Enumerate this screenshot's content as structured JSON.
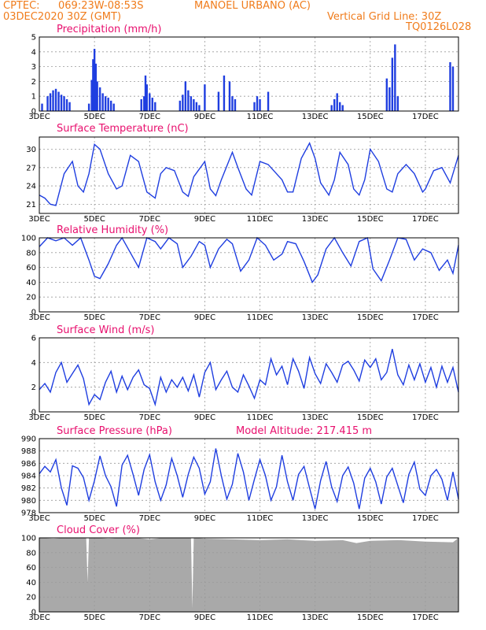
{
  "header": {
    "source": "CPTEC:",
    "coords": "069:23W-08:53S",
    "station": "MANOEL URBANO (AC)",
    "run": "03DEC2020 30Z (GMT)",
    "grid_note": "Vertical Grid Line: 30Z",
    "model": "TQ0126L028"
  },
  "colors": {
    "header": "#f07c1c",
    "title": "#e8106e",
    "series": "#1f3ee0",
    "bars": "#1f3ee0",
    "cloud": "#a9a9a9"
  },
  "x_axis": {
    "tick_labels": [
      "3DEC",
      "5DEC",
      "7DEC",
      "9DEC",
      "11DEC",
      "13DEC",
      "15DEC",
      "17DEC"
    ],
    "tick_days": [
      3,
      5,
      7,
      9,
      11,
      13,
      15,
      17
    ],
    "range_days": [
      3,
      18.2
    ]
  },
  "chart_data": [
    {
      "id": "precip",
      "type": "bar",
      "title": "Precipitation (mm/h)",
      "ylim": [
        0,
        5
      ],
      "yticks": [
        0,
        1,
        2,
        3,
        4,
        5
      ],
      "x": [
        3.1,
        3.3,
        3.4,
        3.5,
        3.6,
        3.7,
        3.8,
        3.9,
        4.0,
        4.1,
        4.8,
        4.9,
        4.95,
        5.0,
        5.05,
        5.1,
        5.2,
        5.3,
        5.4,
        5.5,
        5.6,
        5.7,
        6.7,
        6.8,
        6.85,
        6.9,
        7.0,
        7.1,
        7.2,
        8.1,
        8.2,
        8.3,
        8.4,
        8.5,
        8.6,
        8.7,
        8.8,
        9.0,
        9.5,
        9.7,
        9.9,
        10.0,
        10.1,
        10.8,
        10.9,
        11.0,
        11.3,
        13.6,
        13.7,
        13.8,
        13.9,
        14.0,
        15.6,
        15.7,
        15.8,
        15.9,
        16.0,
        17.9,
        18.0
      ],
      "y": [
        0.5,
        1.0,
        1.2,
        1.4,
        1.5,
        1.3,
        1.1,
        1.0,
        0.8,
        0.6,
        0.5,
        2.1,
        3.5,
        4.2,
        3.2,
        2.0,
        1.6,
        1.2,
        1.0,
        0.9,
        0.7,
        0.5,
        0.8,
        1.0,
        2.4,
        1.8,
        1.2,
        0.9,
        0.6,
        0.7,
        1.1,
        2.0,
        1.4,
        1.0,
        0.8,
        0.6,
        0.4,
        1.8,
        1.3,
        2.4,
        2.0,
        1.0,
        0.8,
        0.6,
        1.0,
        0.8,
        1.3,
        0.4,
        0.8,
        1.2,
        0.6,
        0.4,
        2.2,
        1.6,
        3.6,
        4.5,
        1.0,
        3.3,
        3.0
      ]
    },
    {
      "id": "temp",
      "type": "line",
      "title": "Surface Temperature (nC)",
      "ylim": [
        19.5,
        32
      ],
      "yticks": [
        21,
        24,
        27,
        30
      ],
      "x": [
        3.0,
        3.2,
        3.4,
        3.6,
        3.9,
        4.2,
        4.4,
        4.6,
        4.8,
        5.0,
        5.2,
        5.5,
        5.8,
        6.0,
        6.3,
        6.6,
        6.9,
        7.2,
        7.4,
        7.6,
        7.9,
        8.2,
        8.4,
        8.6,
        9.0,
        9.2,
        9.4,
        9.6,
        10.0,
        10.2,
        10.5,
        10.7,
        11.0,
        11.3,
        11.6,
        11.8,
        12.0,
        12.2,
        12.5,
        12.8,
        13.0,
        13.2,
        13.5,
        13.7,
        13.9,
        14.2,
        14.4,
        14.6,
        14.8,
        15.0,
        15.3,
        15.6,
        15.8,
        16.0,
        16.3,
        16.6,
        16.9,
        17.0,
        17.3,
        17.6,
        17.9,
        18.2
      ],
      "y": [
        22.5,
        22.0,
        21.0,
        20.8,
        26.0,
        28.0,
        24.0,
        23.0,
        26.0,
        30.8,
        30.0,
        26.0,
        23.5,
        24.0,
        29.0,
        28.0,
        23.0,
        22.0,
        26.0,
        27.0,
        26.5,
        23.0,
        22.3,
        25.5,
        28.0,
        23.5,
        22.4,
        25.0,
        29.5,
        27.0,
        23.5,
        22.5,
        28.0,
        27.5,
        26.0,
        25.0,
        23.0,
        23.0,
        28.5,
        31.0,
        28.5,
        24.5,
        22.5,
        25.0,
        29.5,
        27.5,
        23.5,
        22.5,
        25.0,
        30.0,
        28.0,
        23.5,
        23.0,
        26.0,
        27.5,
        26.0,
        23.0,
        23.5,
        26.5,
        27.0,
        24.5,
        29.0
      ]
    },
    {
      "id": "rh",
      "type": "line",
      "title": "Relative Humidity (%)",
      "ylim": [
        0,
        100
      ],
      "yticks": [
        0,
        20,
        40,
        60,
        80,
        100
      ],
      "x": [
        3.0,
        3.3,
        3.6,
        3.9,
        4.2,
        4.5,
        4.8,
        5.0,
        5.2,
        5.5,
        5.8,
        6.0,
        6.3,
        6.6,
        6.9,
        7.2,
        7.4,
        7.7,
        8.0,
        8.2,
        8.5,
        8.8,
        9.0,
        9.2,
        9.5,
        9.8,
        10.0,
        10.3,
        10.6,
        10.9,
        11.2,
        11.5,
        11.8,
        12.0,
        12.3,
        12.6,
        12.9,
        13.1,
        13.4,
        13.7,
        14.0,
        14.3,
        14.6,
        14.9,
        15.1,
        15.4,
        15.7,
        16.0,
        16.3,
        16.6,
        16.9,
        17.2,
        17.5,
        17.8,
        18.0,
        18.2
      ],
      "y": [
        88,
        100,
        96,
        100,
        90,
        100,
        70,
        48,
        45,
        65,
        90,
        100,
        80,
        60,
        100,
        95,
        85,
        100,
        92,
        60,
        75,
        95,
        90,
        60,
        85,
        98,
        92,
        55,
        70,
        100,
        90,
        70,
        78,
        95,
        92,
        68,
        40,
        50,
        85,
        100,
        80,
        62,
        95,
        100,
        58,
        42,
        70,
        100,
        98,
        70,
        85,
        80,
        56,
        70,
        52,
        90
      ]
    },
    {
      "id": "wind",
      "type": "line",
      "title": "Surface Wind (m/s)",
      "ylim": [
        0,
        6
      ],
      "yticks": [
        0,
        2,
        4,
        6
      ],
      "x": [
        3.0,
        3.2,
        3.4,
        3.6,
        3.8,
        4.0,
        4.2,
        4.4,
        4.6,
        4.8,
        5.0,
        5.2,
        5.4,
        5.6,
        5.8,
        6.0,
        6.2,
        6.4,
        6.6,
        6.8,
        7.0,
        7.2,
        7.4,
        7.6,
        7.8,
        8.0,
        8.2,
        8.4,
        8.6,
        8.8,
        9.0,
        9.2,
        9.4,
        9.6,
        9.8,
        10.0,
        10.2,
        10.4,
        10.6,
        10.8,
        11.0,
        11.2,
        11.4,
        11.6,
        11.8,
        12.0,
        12.2,
        12.4,
        12.6,
        12.8,
        13.0,
        13.2,
        13.4,
        13.6,
        13.8,
        14.0,
        14.2,
        14.4,
        14.6,
        14.8,
        15.0,
        15.2,
        15.4,
        15.6,
        15.8,
        16.0,
        16.2,
        16.4,
        16.6,
        16.8,
        17.0,
        17.2,
        17.4,
        17.6,
        17.8,
        18.0,
        18.2
      ],
      "y": [
        1.8,
        2.3,
        1.6,
        3.2,
        4.0,
        2.4,
        3.1,
        3.8,
        2.7,
        0.6,
        1.4,
        1.0,
        2.4,
        3.3,
        1.6,
        2.9,
        1.8,
        2.8,
        3.4,
        2.2,
        1.9,
        0.6,
        2.8,
        1.6,
        2.6,
        2.0,
        2.8,
        1.7,
        3.0,
        1.2,
        3.2,
        4.0,
        1.8,
        2.6,
        3.3,
        2.0,
        1.6,
        3.0,
        2.1,
        1.1,
        2.6,
        2.2,
        4.3,
        3.0,
        3.7,
        2.2,
        4.3,
        3.3,
        1.9,
        4.4,
        3.1,
        2.3,
        3.9,
        3.2,
        2.4,
        3.8,
        4.1,
        3.4,
        2.5,
        4.2,
        3.6,
        4.3,
        2.6,
        3.2,
        5.1,
        3.0,
        2.2,
        3.8,
        2.6,
        3.9,
        2.4,
        3.6,
        2.0,
        3.7,
        2.4,
        3.6,
        1.6
      ]
    },
    {
      "id": "press",
      "type": "line",
      "title": "Surface Pressure (hPa)",
      "ylim": [
        978,
        990
      ],
      "yticks": [
        978,
        980,
        982,
        984,
        986,
        988,
        990
      ],
      "x": [
        3.0,
        3.2,
        3.4,
        3.6,
        3.8,
        4.0,
        4.2,
        4.4,
        4.6,
        4.8,
        5.0,
        5.2,
        5.4,
        5.6,
        5.8,
        6.0,
        6.2,
        6.4,
        6.6,
        6.8,
        7.0,
        7.2,
        7.4,
        7.6,
        7.8,
        8.0,
        8.2,
        8.4,
        8.6,
        8.8,
        9.0,
        9.2,
        9.4,
        9.6,
        9.8,
        10.0,
        10.2,
        10.4,
        10.6,
        10.8,
        11.0,
        11.2,
        11.4,
        11.6,
        11.8,
        12.0,
        12.2,
        12.4,
        12.6,
        12.8,
        13.0,
        13.2,
        13.4,
        13.6,
        13.8,
        14.0,
        14.2,
        14.4,
        14.6,
        14.8,
        15.0,
        15.2,
        15.4,
        15.6,
        15.8,
        16.0,
        16.2,
        16.4,
        16.6,
        16.8,
        17.0,
        17.2,
        17.4,
        17.6,
        17.8,
        18.0,
        18.2
      ],
      "y": [
        984.3,
        985.5,
        984.6,
        986.6,
        982.0,
        979.2,
        985.6,
        985.2,
        983.7,
        980.0,
        983.2,
        987.2,
        984.0,
        982.2,
        979.0,
        985.7,
        987.3,
        984.2,
        980.8,
        985.0,
        987.4,
        983.0,
        980.0,
        982.5,
        986.8,
        984.0,
        980.5,
        984.2,
        987.0,
        985.2,
        981.0,
        983.0,
        988.4,
        984.0,
        980.2,
        982.6,
        987.6,
        984.6,
        980.0,
        983.4,
        986.6,
        984.0,
        980.0,
        982.2,
        987.3,
        983.0,
        980.0,
        984.2,
        985.5,
        982.0,
        978.6,
        983.2,
        986.3,
        982.2,
        979.8,
        984.0,
        985.4,
        982.8,
        978.6,
        983.6,
        985.2,
        983.0,
        979.4,
        983.8,
        985.2,
        982.4,
        979.6,
        984.2,
        986.2,
        981.8,
        980.8,
        984.0,
        985.0,
        983.4,
        980.0,
        984.6,
        980.2
      ]
    },
    {
      "id": "cloud",
      "type": "area",
      "title": "Cloud Cover (%)",
      "ylim": [
        0,
        100
      ],
      "yticks": [
        0,
        20,
        40,
        60,
        80,
        100
      ],
      "x": [
        3.0,
        3.5,
        4.0,
        4.5,
        4.7,
        4.75,
        4.8,
        4.9,
        5.0,
        5.5,
        6.0,
        6.5,
        7.0,
        7.5,
        8.0,
        8.5,
        8.55,
        8.6,
        9.0,
        10.0,
        11.0,
        12.0,
        13.0,
        14.0,
        14.5,
        15.0,
        16.0,
        17.0,
        18.0,
        18.2
      ],
      "y": [
        100,
        99,
        100,
        100,
        100,
        40,
        100,
        100,
        100,
        99,
        100,
        100,
        98,
        100,
        100,
        100,
        5,
        100,
        99,
        98,
        97,
        98,
        96,
        97,
        93,
        96,
        97,
        95,
        94,
        100
      ]
    }
  ],
  "extra": {
    "model_altitude": "Model Altitude: 217.415 m"
  }
}
